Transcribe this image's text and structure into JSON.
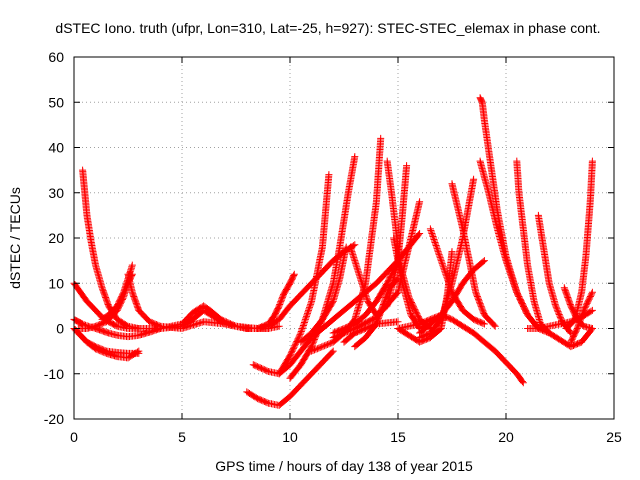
{
  "chart_data": {
    "type": "scatter",
    "title": "dSTEC Iono. truth (ufpr, Lon=310, Lat=-25, h=927): STEC-STEC_elemax in phase cont.",
    "xlabel": "GPS time / hours of day 138 of year 2015",
    "ylabel": "dSTEC  / TECUs",
    "xlim": [
      0,
      25
    ],
    "ylim": [
      -20,
      60
    ],
    "xticks": [
      "0",
      "5",
      "10",
      "15",
      "20",
      "25"
    ],
    "yticks": [
      "-20",
      "-10",
      "0",
      "10",
      "20",
      "30",
      "40",
      "50",
      "60"
    ],
    "grid": true,
    "legend": "none",
    "marker": "plus",
    "color": "#ff0000",
    "series": [
      {
        "x": [
          0.0,
          0.2,
          0.4,
          0.6,
          0.8,
          1.0,
          1.3,
          1.6,
          2.0,
          2.5,
          3.0,
          3.5,
          4.0
        ],
        "values": [
          2.0,
          1.5,
          1.0,
          0.6,
          0.3,
          0.0,
          -0.5,
          -1.0,
          -1.5,
          -1.8,
          -1.5,
          -0.8,
          0.0
        ]
      },
      {
        "x": [
          0.0,
          0.3,
          0.6,
          1.0,
          1.5,
          2.0,
          2.5,
          3.0
        ],
        "values": [
          0.0,
          -1.5,
          -3.0,
          -4.5,
          -5.5,
          -6.2,
          -6.5,
          -5.0
        ]
      },
      {
        "x": [
          0.0,
          0.3,
          0.6,
          1.0,
          1.5,
          2.0,
          2.5,
          3.0
        ],
        "values": [
          0.0,
          -1.5,
          -3.0,
          -4.0,
          -5.0,
          -5.3,
          -5.5,
          -5.5
        ]
      },
      {
        "x": [
          0.0,
          0.3,
          0.6,
          1.0,
          1.3,
          1.6,
          2.0,
          2.5,
          3.0
        ],
        "values": [
          10.0,
          8.0,
          6.0,
          4.0,
          2.5,
          1.5,
          0.5,
          0.0,
          0.0
        ]
      },
      {
        "x": [
          0.4,
          0.5,
          0.6,
          0.8,
          1.0,
          1.3,
          1.6,
          2.0,
          2.5,
          3.0
        ],
        "values": [
          35.0,
          30.0,
          25.0,
          19.0,
          14.0,
          9.0,
          5.0,
          2.0,
          0.5,
          0.0
        ]
      },
      {
        "x": [
          1.3,
          1.6,
          2.0,
          2.3,
          2.5,
          2.7
        ],
        "values": [
          2.0,
          3.0,
          5.0,
          8.0,
          11.0,
          14.0
        ]
      },
      {
        "x": [
          0.2,
          0.6,
          1.0,
          1.5,
          2.0,
          2.3,
          2.5,
          2.7
        ],
        "values": [
          0.0,
          0.0,
          0.5,
          1.5,
          4.0,
          7.0,
          10.0,
          12.0
        ]
      },
      {
        "x": [
          2.5,
          2.7,
          3.0,
          3.5,
          4.0,
          5.0
        ],
        "values": [
          12.0,
          8.0,
          4.0,
          1.5,
          0.5,
          0.0
        ]
      },
      {
        "x": [
          3.0,
          4.0,
          5.0,
          5.5,
          6.0,
          6.5,
          7.0,
          8.0,
          9.0,
          9.5
        ],
        "values": [
          0.0,
          0.0,
          0.5,
          2.0,
          4.0,
          2.5,
          1.0,
          0.0,
          0.0,
          0.5
        ]
      },
      {
        "x": [
          4.0,
          5.0,
          5.5,
          6.0,
          6.3,
          6.8,
          7.5,
          8.5
        ],
        "values": [
          0.0,
          1.0,
          3.5,
          5.0,
          4.0,
          2.0,
          0.5,
          0.0
        ]
      },
      {
        "x": [
          5.0,
          6.0,
          7.0,
          8.0,
          9.0
        ],
        "values": [
          0.0,
          1.5,
          1.0,
          0.0,
          0.0
        ]
      },
      {
        "x": [
          8.0,
          8.5,
          9.0,
          9.5,
          10.0,
          11.0,
          12.0,
          12.5,
          13.0
        ],
        "values": [
          0.0,
          0.0,
          0.5,
          2.0,
          5.0,
          10.0,
          15.0,
          17.0,
          18.5
        ]
      },
      {
        "x": [
          8.0,
          8.5,
          9.0,
          9.3,
          9.5,
          9.7,
          10.0,
          10.2
        ],
        "values": [
          0.0,
          0.0,
          1.0,
          3.0,
          5.0,
          7.5,
          10.0,
          12.0
        ]
      },
      {
        "x": [
          8.0,
          8.5,
          9.0,
          9.5,
          10.0,
          11.0,
          12.0
        ],
        "values": [
          -14.0,
          -15.5,
          -16.5,
          -17.0,
          -15.0,
          -10.0,
          -5.0
        ]
      },
      {
        "x": [
          8.3,
          9.0,
          9.5,
          10.0,
          10.5,
          11.0,
          12.0,
          13.0,
          14.0,
          15.0,
          16.0
        ],
        "values": [
          -8.0,
          -9.5,
          -10.0,
          -8.0,
          -5.0,
          -2.0,
          2.0,
          6.0,
          10.0,
          15.0,
          21.0
        ]
      },
      {
        "x": [
          9.5,
          10.0,
          10.5,
          11.0,
          11.5,
          11.8
        ],
        "values": [
          -10.0,
          -6.0,
          -1.0,
          6.0,
          18.0,
          34.0
        ]
      },
      {
        "x": [
          10.0,
          10.5,
          11.0,
          11.5,
          12.0,
          12.3,
          12.7,
          13.0
        ],
        "values": [
          -11.0,
          -8.0,
          -4.0,
          2.0,
          10.0,
          18.0,
          30.0,
          38.0
        ]
      },
      {
        "x": [
          10.5,
          11.0,
          11.5,
          12.0,
          12.3,
          12.6
        ],
        "values": [
          -3.0,
          -1.0,
          2.0,
          6.0,
          11.0,
          18.0
        ]
      },
      {
        "x": [
          11.0,
          12.0,
          12.5,
          13.0,
          13.5,
          14.0,
          14.2
        ],
        "values": [
          -5.0,
          -3.0,
          -1.0,
          2.0,
          10.0,
          28.0,
          42.0
        ]
      },
      {
        "x": [
          12.0,
          13.0,
          14.0,
          15.0,
          15.5,
          16.0
        ],
        "values": [
          -2.0,
          0.0,
          2.5,
          8.0,
          18.0,
          28.0
        ]
      },
      {
        "x": [
          12.0,
          12.5,
          13.0,
          13.5,
          14.0,
          14.5,
          15.0
        ],
        "values": [
          -1.0,
          0.0,
          1.0,
          3.0,
          6.0,
          10.0,
          15.0
        ]
      },
      {
        "x": [
          12.5,
          13.0,
          13.5,
          14.0,
          15.0
        ],
        "values": [
          -3.0,
          -1.0,
          0.0,
          1.0,
          1.5
        ]
      },
      {
        "x": [
          12.8,
          13.2,
          13.6,
          14.0,
          14.5,
          15.0,
          15.2,
          15.4
        ],
        "values": [
          18.0,
          12.0,
          6.0,
          3.0,
          5.0,
          15.0,
          25.0,
          36.0
        ]
      },
      {
        "x": [
          13.0,
          13.5,
          14.0,
          14.3,
          14.6,
          15.0
        ],
        "values": [
          -4.0,
          -2.0,
          1.0,
          5.0,
          9.0,
          11.0
        ]
      },
      {
        "x": [
          14.5,
          14.7,
          14.9,
          15.1,
          15.5,
          16.0,
          16.5
        ],
        "values": [
          37.0,
          30.0,
          22.0,
          14.0,
          7.0,
          2.0,
          0.0
        ]
      },
      {
        "x": [
          14.8,
          15.2,
          15.6,
          16.0,
          16.5,
          17.0
        ],
        "values": [
          20.0,
          10.0,
          3.0,
          0.0,
          1.0,
          3.0
        ]
      },
      {
        "x": [
          15.0,
          15.5,
          16.0,
          16.5,
          17.0,
          17.5,
          18.0,
          18.5,
          19.0,
          19.5,
          20.0,
          20.5,
          20.8
        ],
        "values": [
          0.0,
          0.5,
          1.0,
          2.0,
          3.0,
          2.0,
          0.5,
          -1.0,
          -3.0,
          -5.0,
          -7.5,
          -10.0,
          -12.0
        ]
      },
      {
        "x": [
          16.0,
          16.5,
          17.0,
          17.5,
          18.0,
          18.5
        ],
        "values": [
          -2.0,
          -1.0,
          2.0,
          10.0,
          20.0,
          33.0
        ]
      },
      {
        "x": [
          16.5,
          17.0,
          17.5,
          18.0,
          18.5,
          19.0
        ],
        "values": [
          22.0,
          15.0,
          8.0,
          4.0,
          2.0,
          1.0
        ]
      },
      {
        "x": [
          15.0,
          15.5,
          16.0,
          16.5,
          17.0,
          17.3,
          17.5
        ],
        "values": [
          0.0,
          -1.5,
          -3.0,
          -2.0,
          0.0,
          8.0,
          17.0
        ]
      },
      {
        "x": [
          16.0,
          16.5,
          17.0,
          17.5,
          18.0,
          18.5,
          19.0
        ],
        "values": [
          -1.0,
          1.0,
          3.0,
          6.0,
          10.0,
          13.0,
          15.0
        ]
      },
      {
        "x": [
          17.5,
          17.7,
          18.0,
          18.3,
          18.6,
          19.0,
          19.5
        ],
        "values": [
          32.0,
          28.0,
          22.0,
          15.0,
          8.0,
          3.0,
          0.5
        ]
      },
      {
        "x": [
          18.8,
          18.9,
          19.0,
          19.3,
          19.6,
          20.0,
          20.5,
          21.0
        ],
        "values": [
          51.0,
          50.0,
          46.0,
          36.0,
          26.0,
          16.0,
          8.0,
          3.0
        ]
      },
      {
        "x": [
          18.8,
          19.2,
          19.6,
          20.0,
          20.5,
          21.0,
          21.5,
          22.0
        ],
        "values": [
          37.0,
          30.0,
          22.0,
          15.0,
          8.0,
          3.0,
          0.0,
          -1.0
        ]
      },
      {
        "x": [
          20.5,
          20.6,
          20.8,
          21.0,
          21.3,
          21.6,
          22.0
        ],
        "values": [
          37.0,
          30.0,
          22.0,
          14.0,
          6.0,
          1.0,
          -1.0
        ]
      },
      {
        "x": [
          21.5,
          21.8,
          22.0,
          22.3,
          22.6,
          23.0
        ],
        "values": [
          25.0,
          16.0,
          10.0,
          5.0,
          1.5,
          -1.0
        ]
      },
      {
        "x": [
          22.0,
          22.5,
          23.0,
          23.5,
          24.0
        ],
        "values": [
          -1.0,
          -2.5,
          -4.0,
          -3.0,
          0.0
        ]
      },
      {
        "x": [
          22.7,
          23.0,
          23.3,
          23.6,
          24.0
        ],
        "values": [
          9.0,
          5.0,
          2.0,
          0.5,
          0.0
        ]
      },
      {
        "x": [
          23.0,
          23.3,
          23.6,
          24.0
        ],
        "values": [
          -3.0,
          0.0,
          4.0,
          8.0
        ]
      },
      {
        "x": [
          22.8,
          23.2,
          23.5,
          23.7,
          23.9,
          24.0
        ],
        "values": [
          0.0,
          2.0,
          8.0,
          16.0,
          28.0,
          37.0
        ]
      },
      {
        "x": [
          21.0,
          21.5,
          22.0,
          22.5,
          23.0,
          23.5,
          24.0
        ],
        "values": [
          0.0,
          0.0,
          0.5,
          1.0,
          1.5,
          2.5,
          4.0
        ]
      }
    ]
  }
}
